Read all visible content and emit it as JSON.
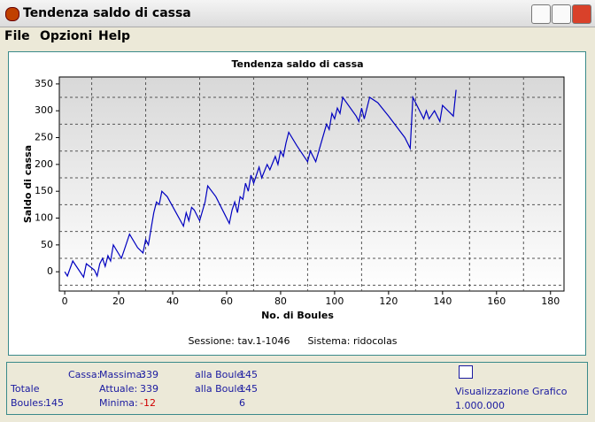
{
  "window": {
    "title": "Tendenza saldo di cassa"
  },
  "menu": [
    "File",
    "Opzioni",
    "Help"
  ],
  "chart_data": {
    "type": "line",
    "title": "Tendenza saldo di cassa",
    "x_label": "No. di Boules",
    "y_label": "Saldo di cassa",
    "x": [
      0,
      1,
      3,
      7,
      8,
      11,
      12,
      13,
      14,
      15,
      16,
      17,
      18,
      21,
      22,
      24,
      27,
      29,
      30,
      31,
      32,
      33,
      34,
      35,
      36,
      38,
      44,
      45,
      46,
      47,
      48,
      50,
      52,
      53,
      56,
      61,
      62,
      63,
      64,
      65,
      66,
      67,
      68,
      69,
      70,
      72,
      73,
      75,
      76,
      78,
      79,
      80,
      81,
      82,
      83,
      86,
      90,
      91,
      93,
      95,
      97,
      98,
      99,
      100,
      101,
      102,
      103,
      108,
      109,
      110,
      111,
      113,
      116,
      120,
      126,
      128,
      129,
      131,
      133,
      134,
      135,
      137,
      139,
      140,
      143,
      144,
      145
    ],
    "values": [
      0,
      -8,
      20,
      -10,
      15,
      3,
      -8,
      15,
      25,
      10,
      30,
      20,
      50,
      25,
      40,
      70,
      45,
      35,
      60,
      50,
      80,
      110,
      130,
      125,
      150,
      140,
      85,
      110,
      95,
      120,
      115,
      95,
      130,
      160,
      140,
      90,
      115,
      130,
      110,
      140,
      135,
      165,
      150,
      180,
      165,
      195,
      175,
      200,
      190,
      215,
      200,
      225,
      215,
      240,
      260,
      235,
      205,
      225,
      205,
      240,
      275,
      265,
      295,
      285,
      305,
      295,
      325,
      290,
      280,
      305,
      285,
      325,
      315,
      290,
      250,
      230,
      325,
      305,
      285,
      300,
      285,
      300,
      280,
      310,
      295,
      290,
      339
    ],
    "color": "#0000c0",
    "xlim": [
      -2,
      185
    ],
    "ylim": [
      -36,
      363
    ],
    "xticks": [
      0,
      20,
      40,
      60,
      80,
      100,
      120,
      140,
      160,
      180
    ],
    "yticks": [
      0,
      50,
      100,
      150,
      200,
      250,
      300,
      350
    ],
    "xgrid": [
      10,
      30,
      50,
      70,
      90,
      110,
      130,
      150,
      170
    ],
    "ygrid": [
      -25,
      25,
      75,
      125,
      175,
      225,
      275,
      325
    ],
    "annotations": [
      "Sessione: tav.1-1046",
      "Sistema: ridocolas"
    ]
  },
  "status": {
    "cassa": "Cassa:",
    "massima": "Massima:",
    "massima_value": "339",
    "alla_boule_1": "alla Boule:",
    "alla_boule_1_value": "145",
    "totale": "Totale",
    "attuale": "Attuale:",
    "attuale_value": "339",
    "alla_boule_2": "alla Boule:",
    "alla_boule_2_value": "145",
    "boules": "Boules:",
    "boules_value": "145",
    "minima": "Minima:",
    "minima_value": "-12",
    "minima_boule_value": "6",
    "view_label": "Visualizzazione Grafico",
    "view_value": "1.000.000"
  }
}
